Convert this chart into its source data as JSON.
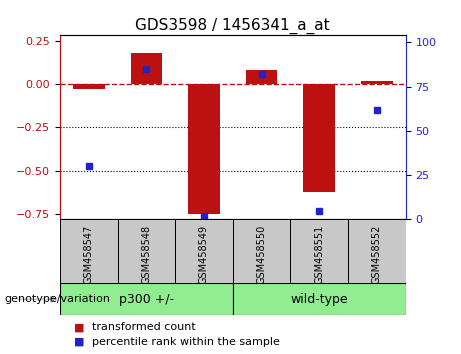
{
  "title": "GDS3598 / 1456341_a_at",
  "categories": [
    "GSM458547",
    "GSM458548",
    "GSM458549",
    "GSM458550",
    "GSM458551",
    "GSM458552"
  ],
  "red_values": [
    -0.03,
    0.18,
    -0.75,
    0.08,
    -0.62,
    0.02
  ],
  "blue_values": [
    30,
    85,
    2,
    82,
    5,
    62
  ],
  "ylim_left": [
    -0.78,
    0.28
  ],
  "ylim_right": [
    0,
    104
  ],
  "yticks_left": [
    0.25,
    0.0,
    -0.25,
    -0.5,
    -0.75
  ],
  "yticks_right": [
    100,
    75,
    50,
    25,
    0
  ],
  "hlines_dotted": [
    -0.25,
    -0.5
  ],
  "hline_dashed": 0.0,
  "group1_label": "p300 +/-",
  "group2_label": "wild-type",
  "group1_count": 3,
  "group2_count": 3,
  "xlabel_label": "genotype/variation",
  "legend1_label": "transformed count",
  "legend2_label": "percentile rank within the sample",
  "red_color": "#bb1111",
  "blue_color": "#2222cc",
  "bar_width": 0.55,
  "group_color": "#90ee90",
  "bg_label": "#c8c8c8",
  "title_fontsize": 11,
  "tick_fontsize": 8,
  "label_fontsize": 8,
  "legend_fontsize": 8
}
